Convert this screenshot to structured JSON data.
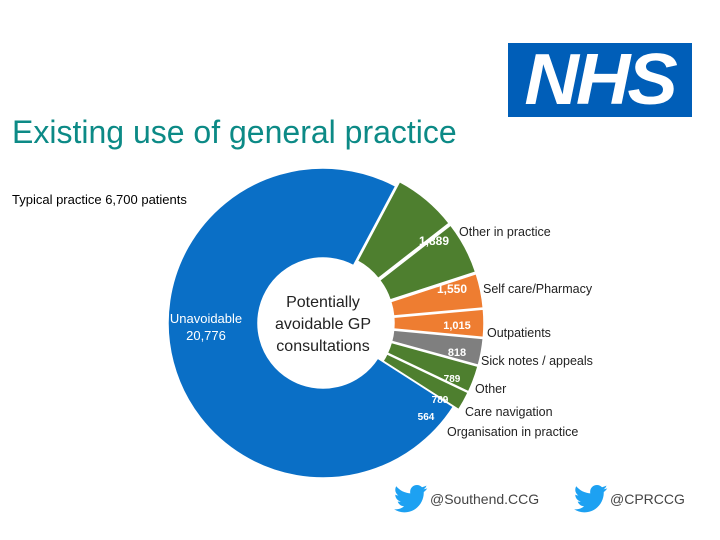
{
  "logo": {
    "text": "NHS",
    "color": "#005eb8"
  },
  "title": "Existing use of general practice",
  "subtitle": "Typical practice 6,700 patients",
  "chart_data": {
    "type": "pie",
    "variant": "donut",
    "center_label": [
      "Potentially",
      "avoidable GP",
      "consultations"
    ],
    "slices": [
      {
        "name": "Unavoidable",
        "value": 20776,
        "value_label": "20,776",
        "color": "#0a6fc6"
      },
      {
        "name": "Other in practice",
        "value": 1889,
        "value_label": "1,889",
        "color": "#4e7f2f"
      },
      {
        "name": "Self care/Pharmacy",
        "value": 1550,
        "value_label": "1,550",
        "color": "#4e7f2f"
      },
      {
        "name": "Outpatients",
        "value": 1015,
        "value_label": "1,015",
        "color": "#ee7d31"
      },
      {
        "name": "Sick notes / appeals",
        "value": 818,
        "value_label": "818",
        "color": "#ee7d31"
      },
      {
        "name": "Other",
        "value": 789,
        "value_label": "789",
        "color": "#7f7f7f"
      },
      {
        "name": "Care navigation",
        "value": 789,
        "value_label": "789",
        "color": "#4e7f2f"
      },
      {
        "name": "Organisation in practice",
        "value": 564,
        "value_label": "564",
        "color": "#4e7f2f"
      }
    ]
  },
  "social": [
    {
      "handle": "@Southend.CCG",
      "icon": "twitter-bird-icon",
      "color": "#1da1f2"
    },
    {
      "handle": "@CPRCCG",
      "icon": "twitter-bird-icon",
      "color": "#1da1f2"
    }
  ]
}
